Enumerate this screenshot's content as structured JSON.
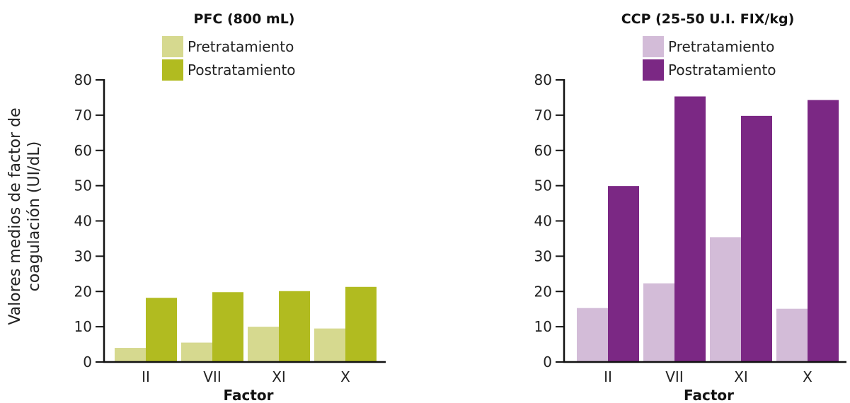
{
  "chart_data": [
    {
      "type": "bar",
      "title": "PFC (800 mL)",
      "ylabel_lines": [
        "Valores medios de factor de",
        "coagulación (UI/dL)"
      ],
      "xlabel": "Factor",
      "categories": [
        "II",
        "VII",
        "XI",
        "X"
      ],
      "ylim": [
        0,
        80
      ],
      "yticks": [
        0,
        10,
        20,
        30,
        40,
        50,
        60,
        70,
        80
      ],
      "legend_position": "top",
      "series": [
        {
          "name": "Pretratamiento",
          "color": "#d6d98f",
          "values": [
            4,
            5.5,
            10,
            9.5
          ]
        },
        {
          "name": "Postratamiento",
          "color": "#b1bb20",
          "values": [
            18.2,
            19.8,
            20.1,
            21.3
          ]
        }
      ]
    },
    {
      "type": "bar",
      "title": "CCP (25-50 U.I. FIX/kg)",
      "ylabel_lines": [],
      "xlabel": "Factor",
      "categories": [
        "II",
        "VII",
        "XI",
        "X"
      ],
      "ylim": [
        0,
        80
      ],
      "yticks": [
        0,
        10,
        20,
        30,
        40,
        50,
        60,
        70,
        80
      ],
      "legend_position": "top",
      "series": [
        {
          "name": "Pretratamiento",
          "color": "#d3bcd8",
          "values": [
            15.3,
            22.3,
            35.4,
            15.1
          ]
        },
        {
          "name": "Postratamiento",
          "color": "#7b2884",
          "values": [
            49.9,
            75.3,
            69.8,
            74.3
          ]
        }
      ]
    }
  ]
}
